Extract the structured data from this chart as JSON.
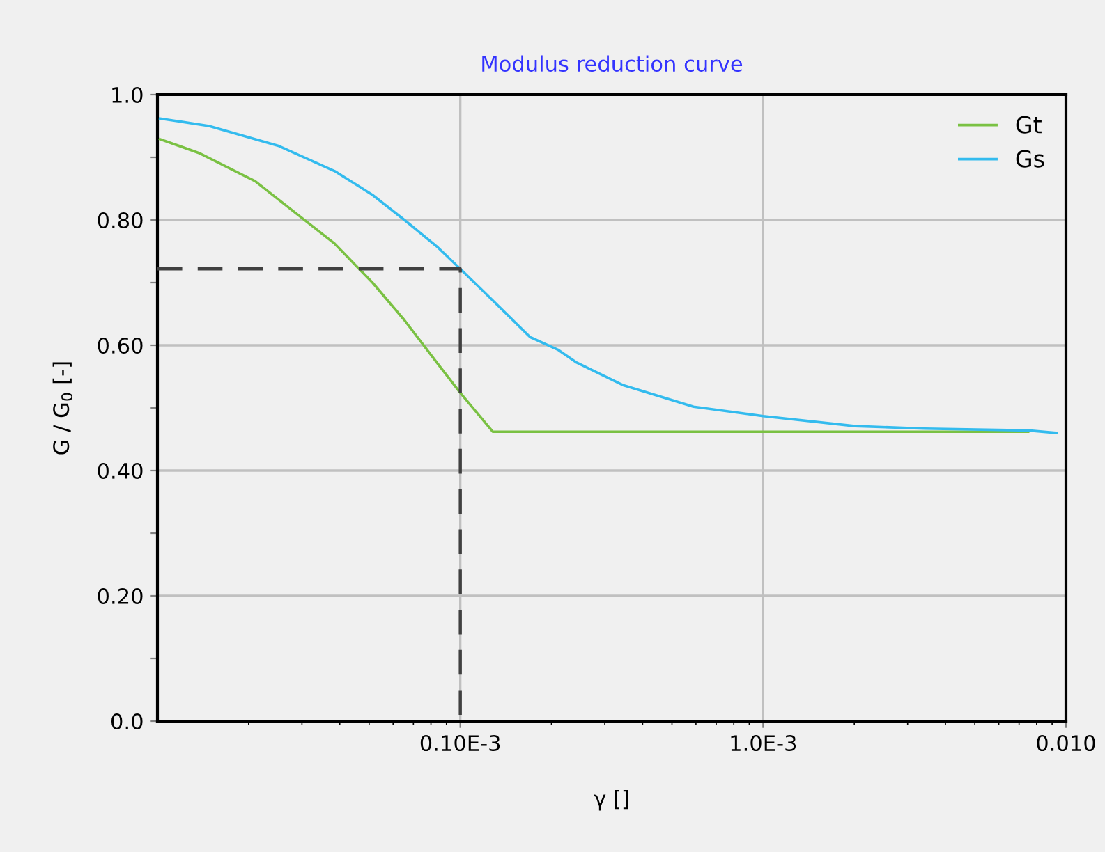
{
  "chart_data": {
    "type": "line",
    "title": "Modulus reduction curve",
    "xlabel": "γ []",
    "ylabel": "G / G$_{0}$ [-]",
    "log": "x",
    "xlim": [
      1e-05,
      0.01
    ],
    "xticks": [
      {
        "value": 0.0001,
        "label": "0.10E-3"
      },
      {
        "value": 0.001,
        "label": "1.0E-3"
      },
      {
        "value": 0.01,
        "label": "0.010"
      }
    ],
    "ylim": [
      0,
      1
    ],
    "yticks": [
      {
        "value": 0,
        "label": "0.0"
      },
      {
        "value": 0.1,
        "label": null
      },
      {
        "value": 0.2,
        "label": "0.20"
      },
      {
        "value": 0.3,
        "label": null
      },
      {
        "value": 0.4,
        "label": "0.40"
      },
      {
        "value": 0.5,
        "label": null
      },
      {
        "value": 0.6,
        "label": "0.60"
      },
      {
        "value": 0.7,
        "label": null
      },
      {
        "value": 0.8,
        "label": "0.80"
      },
      {
        "value": 0.9,
        "label": null
      },
      {
        "value": 1,
        "label": "1.0"
      }
    ],
    "grid": true,
    "legend": "top right",
    "line_style": "solid",
    "marker": "none",
    "series": [
      {
        "name": "Gt",
        "color": "#7ac143",
        "x": [
          1.02e-05,
          1.37e-05,
          2.1e-05,
          3.02e-05,
          3.85e-05,
          5.13e-05,
          6.54e-05,
          8.35e-05,
          0.0001,
          0.000128,
          0.0075
        ],
        "values": [
          0.929,
          0.907,
          0.862,
          0.802,
          0.762,
          0.7,
          0.64,
          0.573,
          0.524,
          0.462,
          0.462
        ]
      },
      {
        "name": "Gs",
        "color": "#33bbee",
        "x": [
          1.02e-05,
          1.48e-05,
          2.52e-05,
          3.85e-05,
          5.13e-05,
          6.54e-05,
          8.35e-05,
          0.0001,
          0.000124,
          0.00017,
          0.00021,
          0.000241,
          0.000346,
          0.000589,
          0.001,
          0.00201,
          0.00342,
          0.0075,
          0.0093
        ],
        "values": [
          0.962,
          0.95,
          0.918,
          0.878,
          0.84,
          0.8,
          0.758,
          0.722,
          0.678,
          0.613,
          0.593,
          0.573,
          0.536,
          0.502,
          0.487,
          0.471,
          0.467,
          0.464,
          0.46
        ]
      },
      {
        "color": "#404040",
        "line_style": "dashed",
        "x": [
          1e-05,
          0.0001,
          0.0001
        ],
        "values": [
          0.722,
          0.722,
          0
        ]
      }
    ]
  }
}
